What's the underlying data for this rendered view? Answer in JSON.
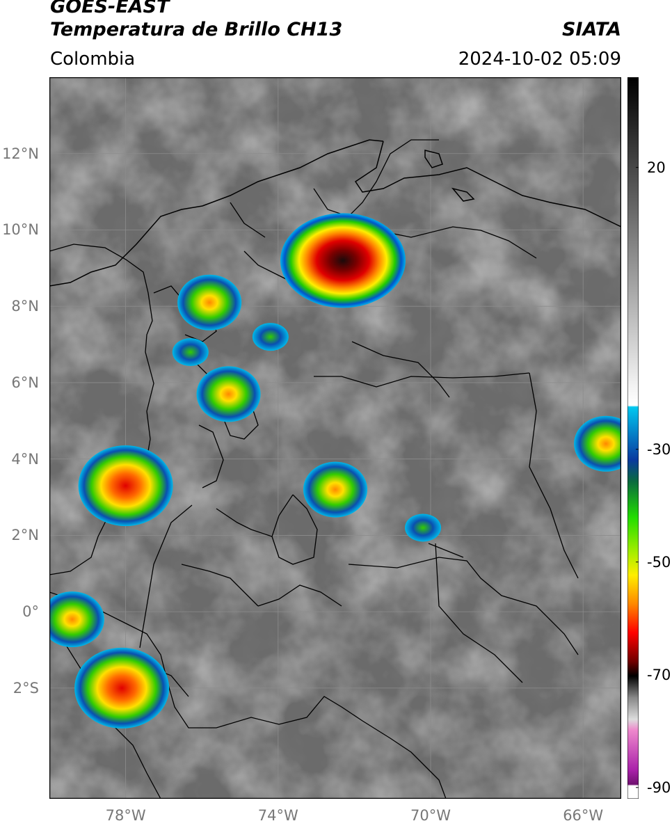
{
  "header": {
    "satellite": "GOES-EAST",
    "product": "Temperatura de Brillo CH13",
    "region": "Colombia",
    "agency": "SIATA",
    "datetime": "2024-10-02 05:09"
  },
  "axes": {
    "lat_labels": [
      "12°N",
      "10°N",
      "8°N",
      "6°N",
      "4°N",
      "2°N",
      "0°",
      "2°S"
    ],
    "lon_labels": [
      "78°W",
      "74°W",
      "70°W",
      "66°W"
    ],
    "lat_values": [
      12,
      10,
      8,
      6,
      4,
      2,
      0,
      -2
    ],
    "lon_values": [
      -78,
      -74,
      -70,
      -66
    ],
    "lon_range": [
      -80,
      -65
    ],
    "lat_range": [
      -4.9,
      14.0
    ],
    "grid": true
  },
  "colorbar": {
    "labels": [
      "20",
      "-30",
      "-50",
      "-70",
      "-90"
    ],
    "values": [
      20,
      -30,
      -50,
      -70,
      -90
    ],
    "range": [
      -92,
      36
    ]
  },
  "colors": {
    "background_gray": "#6b6b6b",
    "border_line": "#000000",
    "gridline": "#8c8c8c"
  },
  "storm_cells": [
    {
      "lon": -72.3,
      "lat": 9.2,
      "intensity": "extreme"
    },
    {
      "lon": -78.0,
      "lat": 3.3,
      "intensity": "strong"
    },
    {
      "lon": -78.1,
      "lat": -2.0,
      "intensity": "strong"
    },
    {
      "lon": -72.5,
      "lat": 3.2,
      "intensity": "moderate"
    },
    {
      "lon": -75.8,
      "lat": 8.1,
      "intensity": "moderate"
    },
    {
      "lon": -75.3,
      "lat": 5.7,
      "intensity": "moderate"
    },
    {
      "lon": -65.4,
      "lat": 4.4,
      "intensity": "moderate"
    },
    {
      "lon": -79.4,
      "lat": -0.2,
      "intensity": "moderate"
    },
    {
      "lon": -76.3,
      "lat": 6.8,
      "intensity": "weak"
    },
    {
      "lon": -74.2,
      "lat": 7.2,
      "intensity": "weak"
    },
    {
      "lon": -70.2,
      "lat": 2.2,
      "intensity": "weak"
    }
  ]
}
